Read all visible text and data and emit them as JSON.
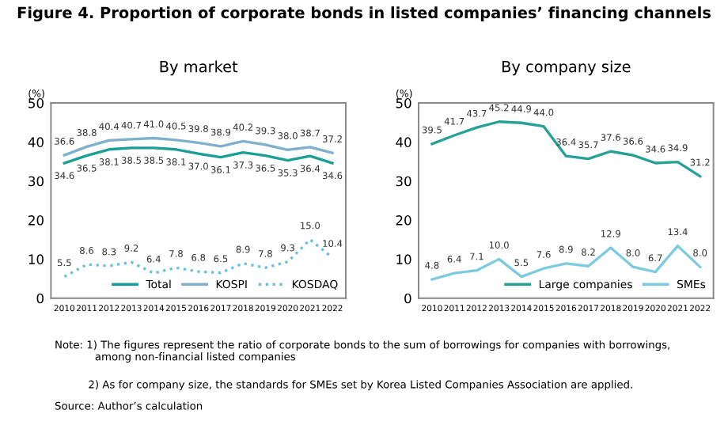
{
  "chart_data": [
    {
      "type": "line",
      "title": "By market",
      "ylabel": "(%)",
      "categories": [
        "2010",
        "2011",
        "2012",
        "2013",
        "2014",
        "2015",
        "2016",
        "2017",
        "2018",
        "2019",
        "2020",
        "2021",
        "2022"
      ],
      "series": [
        {
          "name": "Total",
          "color": "#1a9e96",
          "line_style": "solid",
          "values": [
            34.6,
            36.5,
            38.1,
            38.5,
            38.5,
            38.1,
            37.0,
            36.1,
            37.3,
            36.5,
            35.3,
            36.4,
            34.6
          ],
          "value_labels": [
            "34.6",
            "36.5",
            "38.1",
            "38.5",
            "38.5",
            "38.1",
            "37.0",
            "36.1",
            "37.3",
            "36.5",
            "35.3",
            "36.4",
            "34.6"
          ]
        },
        {
          "name": "KOSPI",
          "color": "#7fb0cc",
          "line_style": "solid",
          "values": [
            36.6,
            38.8,
            40.4,
            40.7,
            41.0,
            40.5,
            39.8,
            38.9,
            40.2,
            39.3,
            38.0,
            38.7,
            37.2
          ],
          "value_labels": [
            "36.6",
            "38.8",
            "40.4",
            "40.7",
            "41.0",
            "40.5",
            "39.8",
            "38.9",
            "40.2",
            "39.3",
            "38.0",
            "38.7",
            "37.2"
          ]
        },
        {
          "name": "KOSDAQ",
          "color": "#6cc0dc",
          "line_style": "dotted",
          "values": [
            5.5,
            8.6,
            8.3,
            9.2,
            6.4,
            7.8,
            6.8,
            6.5,
            8.9,
            7.8,
            9.3,
            15.0,
            10.4
          ],
          "value_labels": [
            "5.5",
            "8.6",
            "8.3",
            "9.2",
            "6.4",
            "7.8",
            "6.8",
            "6.5",
            "8.9",
            "7.8",
            "9.3",
            "15.0",
            "10.4"
          ]
        }
      ],
      "ylim": [
        0,
        50
      ],
      "yticks": [
        0,
        10,
        20,
        30,
        40,
        50
      ],
      "legend": "bottom right",
      "grid": false,
      "marker": "none",
      "annotations": [
        "Figure 4. Proportion of corporate bonds in listed companies’ financing channels",
        "Note: 1) The figures represent the ratio of corporate bonds to the sum of borrowings for companies with borrowings,\n            among non-financial listed companies",
        "          2) As for company size, the standards for SMEs set by Korea Listed Companies Association are applied.",
        "Source: Author’s calculation"
      ]
    },
    {
      "type": "line",
      "title": "By company size",
      "ylabel": "(%)",
      "categories": [
        "2010",
        "2011",
        "2012",
        "2013",
        "2014",
        "2015",
        "2016",
        "2017",
        "2018",
        "2019",
        "2020",
        "2021",
        "2022"
      ],
      "series": [
        {
          "name": "Large companies",
          "color": "#26a197",
          "line_style": "solid",
          "values": [
            39.5,
            41.7,
            43.7,
            45.2,
            44.9,
            44.0,
            36.4,
            35.7,
            37.6,
            36.6,
            34.6,
            34.9,
            31.2
          ],
          "value_labels": [
            "39.5",
            "41.7",
            "43.7",
            "45.2",
            "44.9",
            "44.0",
            "36.4",
            "35.7",
            "37.6",
            "36.6",
            "34.6",
            "34.9",
            "31.2"
          ]
        },
        {
          "name": "SMEs",
          "color": "#7ccbe0",
          "line_style": "solid",
          "values": [
            4.8,
            6.4,
            7.1,
            10.0,
            5.5,
            7.6,
            8.9,
            8.2,
            12.9,
            8.0,
            6.7,
            13.4,
            8.0
          ],
          "value_labels": [
            "4.8",
            "6.4",
            "7.1",
            "10.0",
            "5.5",
            "7.6",
            "8.9",
            "8.2",
            "12.9",
            "8.0",
            "6.7",
            "13.4",
            "8.0"
          ]
        }
      ],
      "ylim": [
        0,
        50
      ],
      "yticks": [
        0,
        10,
        20,
        30,
        40,
        50
      ],
      "legend": "bottom right",
      "grid": false,
      "marker": "none"
    }
  ]
}
